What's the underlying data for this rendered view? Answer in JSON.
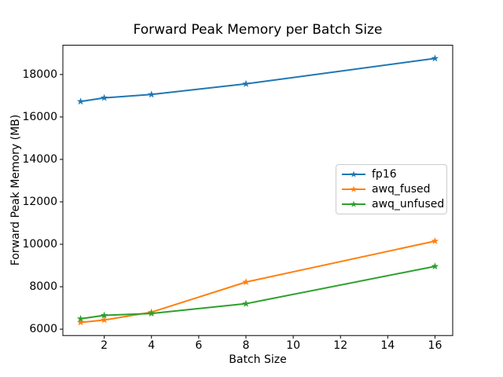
{
  "figure": {
    "background": "#ffffff",
    "text_color": "#000000",
    "axis_color": "#000000",
    "legend_border_color": "#cccccc"
  },
  "chart_data": {
    "type": "line",
    "title": "Forward Peak Memory per Batch Size",
    "xlabel": "Batch Size",
    "ylabel": "Forward Peak Memory (MB)",
    "x": [
      1,
      2,
      4,
      8,
      16
    ],
    "series": [
      {
        "name": "fp16",
        "color": "#1f77b4",
        "marker": "star",
        "values": [
          16730,
          16900,
          17060,
          17560,
          18760
        ]
      },
      {
        "name": "awq_fused",
        "color": "#ff7f0e",
        "marker": "star",
        "values": [
          6320,
          6430,
          6800,
          8220,
          10150
        ]
      },
      {
        "name": "awq_unfused",
        "color": "#2ca02c",
        "marker": "star",
        "values": [
          6490,
          6650,
          6740,
          7200,
          8960
        ]
      }
    ],
    "xticks": [
      2,
      4,
      6,
      8,
      10,
      12,
      14,
      16
    ],
    "yticks": [
      6000,
      8000,
      10000,
      12000,
      14000,
      16000,
      18000
    ],
    "xlim": [
      0.25,
      16.75
    ],
    "ylim": [
      5700,
      19380
    ],
    "grid": false,
    "legend_position": "center-right",
    "legend_entries": [
      "fp16",
      "awq_fused",
      "awq_unfused"
    ]
  }
}
